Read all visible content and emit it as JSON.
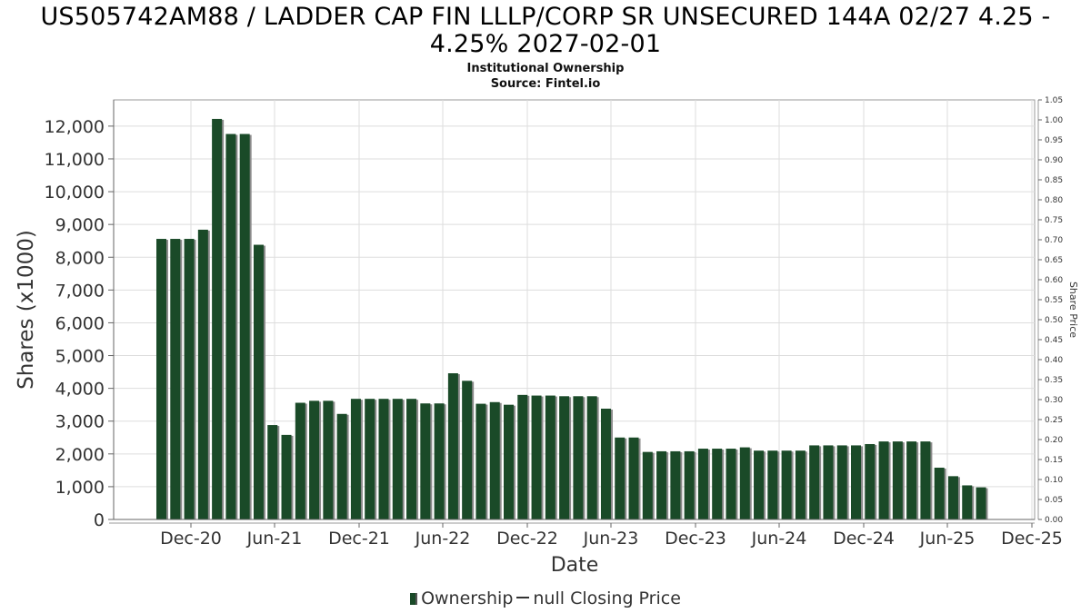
{
  "title_line1": "US505742AM88 / LADDER CAP FIN LLLP/CORP SR UNSECURED 144A 02/27 4.25 -",
  "title_line2": "4.25% 2027-02-01",
  "subtitle": "Institutional Ownership",
  "source": "Source: Fintel.io",
  "legend": {
    "ownership": "Ownership",
    "price": "null Closing Price"
  },
  "colors": {
    "bar": "#1a4a28",
    "bar_shadow": "#8a8a8a",
    "grid": "#dddddd"
  },
  "chart_data": {
    "type": "bar",
    "title": "US505742AM88 / LADDER CAP FIN LLLP/CORP SR UNSECURED 144A 02/27 4.25 - 4.25% 2027-02-01",
    "xlabel": "Date",
    "ylabel": "Shares (x1000)",
    "y2label": "Share Price",
    "ylim": [
      0,
      12800
    ],
    "y2lim": [
      0,
      1.05
    ],
    "yticks": [
      0,
      1000,
      2000,
      3000,
      4000,
      5000,
      6000,
      7000,
      8000,
      9000,
      10000,
      11000,
      12000
    ],
    "ytick_labels": [
      "0",
      "1,000",
      "2,000",
      "3,000",
      "4,000",
      "5,000",
      "6,000",
      "7,000",
      "8,000",
      "9,000",
      "10,000",
      "11,000",
      "12,000"
    ],
    "y2ticks": [
      "0.00",
      "0.05",
      "0.10",
      "0.15",
      "0.20",
      "0.25",
      "0.30",
      "0.35",
      "0.40",
      "0.45",
      "0.50",
      "0.55",
      "0.60",
      "0.65",
      "0.70",
      "0.75",
      "0.80",
      "0.85",
      "0.90",
      "0.95",
      "1.00",
      "1.05"
    ],
    "xticks": [
      "Dec-20",
      "Jun-21",
      "Dec-21",
      "Jun-22",
      "Dec-22",
      "Jun-23",
      "Dec-23",
      "Jun-24",
      "Dec-24",
      "Jun-25",
      "Dec-25"
    ],
    "grid": true,
    "legend_position": "bottom",
    "series": [
      {
        "name": "Ownership",
        "values": [
          8560,
          8560,
          8560,
          8840,
          12220,
          11760,
          11760,
          8380,
          2880,
          2580,
          3560,
          3620,
          3620,
          3220,
          3680,
          3680,
          3680,
          3680,
          3680,
          3540,
          3540,
          4460,
          4230,
          3530,
          3580,
          3500,
          3800,
          3780,
          3780,
          3760,
          3760,
          3760,
          3380,
          2500,
          2500,
          2060,
          2080,
          2080,
          2080,
          2160,
          2160,
          2160,
          2200,
          2100,
          2100,
          2100,
          2100,
          2260,
          2260,
          2260,
          2260,
          2300,
          2380,
          2380,
          2380,
          2380,
          1580,
          1320,
          1040,
          980
        ]
      }
    ]
  }
}
